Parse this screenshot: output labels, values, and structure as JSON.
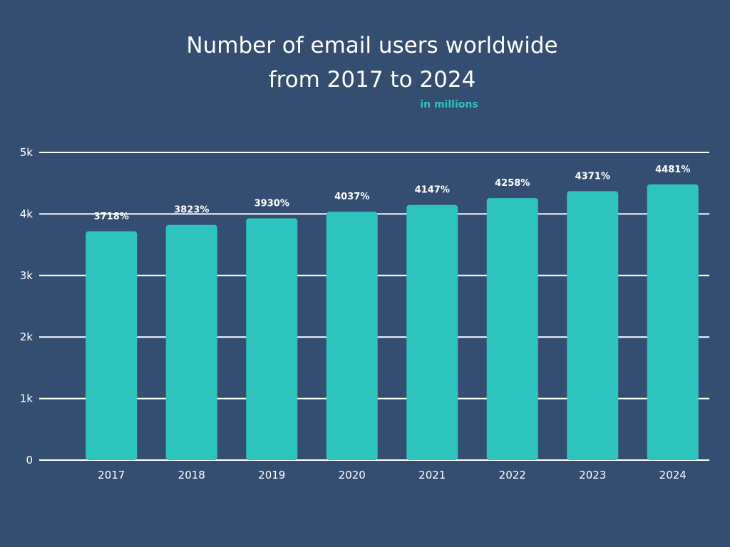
{
  "chart_data": {
    "type": "bar",
    "title_line1": "Number of email users worldwide",
    "title_line2": "from 2017 to 2024",
    "subtitle": "in millions",
    "categories": [
      "2017",
      "2018",
      "2019",
      "2020",
      "2021",
      "2022",
      "2023",
      "2024"
    ],
    "values": [
      3718,
      3823,
      3930,
      4037,
      4147,
      4258,
      4371,
      4481
    ],
    "data_labels": [
      "3718%",
      "3823%",
      "3930%",
      "4037%",
      "4147%",
      "4258%",
      "4371%",
      "4481%"
    ],
    "ytick_labels": [
      "0",
      "1k",
      "2k",
      "3k",
      "4k",
      "5k"
    ],
    "ytick_values": [
      0,
      1000,
      2000,
      3000,
      4000,
      5000
    ],
    "ylim": [
      0,
      5000
    ],
    "grid": true,
    "legend": "none",
    "colors": {
      "background": "#344e72",
      "bar": "#2ec4be",
      "subtitle": "#2ec4be",
      "text": "#ffffff",
      "grid": "#ffffff"
    }
  }
}
